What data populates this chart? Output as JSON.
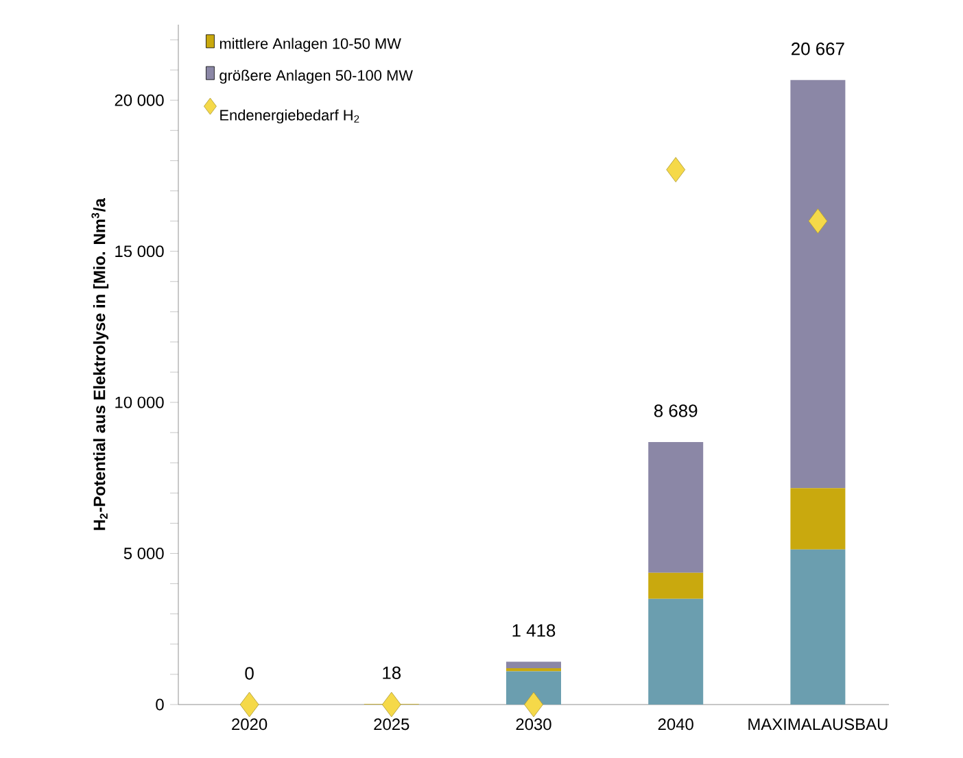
{
  "chart_data": {
    "type": "bar",
    "stacked": true,
    "ylabel": "H$_{2}$-Potential aus Elektrolyse in [Mio. Nm$^{3}$/a",
    "categories": [
      "2020",
      "2025",
      "2030",
      "2040",
      "MAXIMALAUSBAU"
    ],
    "series": [
      {
        "color": "#6b9eaf",
        "values": [
          0,
          0,
          1100,
          3500,
          5130
        ]
      },
      {
        "name": "mittlere Anlagen 10-50 MW",
        "color": "#c9a90e",
        "values": [
          0,
          18,
          100,
          860,
          2030
        ]
      },
      {
        "name": "größere Anlagen 50-100 MW",
        "color": "#8b87a6",
        "values": [
          0,
          0,
          218,
          4329,
          13507
        ]
      },
      {
        "name": "Endenergiebedarf H$_{2}$",
        "type": "scatter",
        "marker": "diamond",
        "color": "#f5d949",
        "values": [
          0,
          0,
          0,
          17700,
          16000
        ]
      }
    ],
    "totals": [
      "0",
      "18",
      "1 418",
      "8 689",
      "20 667"
    ],
    "ylim": [
      0,
      22500
    ],
    "yticks": [
      {
        "value": 0,
        "label": "0"
      },
      {
        "value": 1000,
        "label": null
      },
      {
        "value": 2000,
        "label": null
      },
      {
        "value": 3000,
        "label": null
      },
      {
        "value": 4000,
        "label": null
      },
      {
        "value": 5000,
        "label": "5 000"
      },
      {
        "value": 6000,
        "label": null
      },
      {
        "value": 7000,
        "label": null
      },
      {
        "value": 8000,
        "label": null
      },
      {
        "value": 9000,
        "label": null
      },
      {
        "value": 10000,
        "label": "10 000"
      },
      {
        "value": 11000,
        "label": null
      },
      {
        "value": 12000,
        "label": null
      },
      {
        "value": 13000,
        "label": null
      },
      {
        "value": 14000,
        "label": null
      },
      {
        "value": 15000,
        "label": "15 000"
      },
      {
        "value": 16000,
        "label": null
      },
      {
        "value": 17000,
        "label": null
      },
      {
        "value": 18000,
        "label": null
      },
      {
        "value": 19000,
        "label": null
      },
      {
        "value": 20000,
        "label": "20 000"
      },
      {
        "value": 21000,
        "label": null
      },
      {
        "value": 22000,
        "label": null
      }
    ],
    "grid": false,
    "legend": "top left"
  }
}
